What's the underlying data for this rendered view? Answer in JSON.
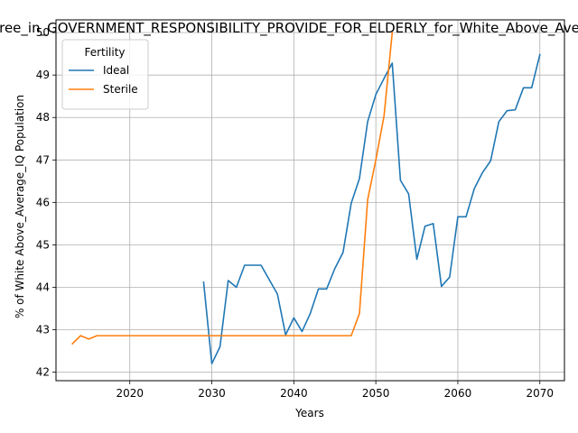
{
  "chart_data": {
    "type": "line",
    "title": "% Agree_in_GOVERNMENT_RESPONSIBILITY_PROVIDE_FOR_ELDERLY_for_White_Above_Average_IQ",
    "xlabel": "Years",
    "ylabel": "% of White Above_Average_IQ Population",
    "xlim": [
      2011,
      2073
    ],
    "ylim": [
      41.8,
      50.3
    ],
    "xticks": [
      2020,
      2030,
      2040,
      2050,
      2060,
      2070
    ],
    "yticks": [
      42,
      43,
      44,
      45,
      46,
      47,
      48,
      49,
      50
    ],
    "grid": true,
    "legend": {
      "title": "Fertility",
      "placement": "top-left"
    },
    "series": [
      {
        "name": "Ideal",
        "color": "#1f77b4",
        "x": [
          2029,
          2030,
          2031,
          2032,
          2033,
          2034,
          2035,
          2036,
          2037,
          2038,
          2039,
          2040,
          2041,
          2042,
          2043,
          2044,
          2045,
          2046,
          2047,
          2048,
          2049,
          2050,
          2051,
          2052,
          2053,
          2054,
          2055,
          2056,
          2057,
          2058,
          2059,
          2060,
          2061,
          2062,
          2063,
          2064,
          2065,
          2066,
          2067,
          2068,
          2069,
          2070
        ],
        "y": [
          44.12,
          42.2,
          42.6,
          44.16,
          44.0,
          44.52,
          44.52,
          44.52,
          44.18,
          43.84,
          42.88,
          43.28,
          42.96,
          43.38,
          43.96,
          43.96,
          44.44,
          44.82,
          45.98,
          46.56,
          47.9,
          48.54,
          48.92,
          49.28,
          46.52,
          46.2,
          44.66,
          45.44,
          45.5,
          44.02,
          44.24,
          45.66,
          45.66,
          46.32,
          46.7,
          46.98,
          47.9,
          48.16,
          48.18,
          48.7,
          48.7,
          49.48
        ]
      },
      {
        "name": "Sterile",
        "color": "#ff7f0e",
        "x": [
          2013,
          2014,
          2015,
          2016,
          2017,
          2018,
          2019,
          2020,
          2021,
          2022,
          2023,
          2024,
          2025,
          2026,
          2027,
          2028,
          2029,
          2030,
          2031,
          2032,
          2033,
          2034,
          2035,
          2036,
          2037,
          2038,
          2039,
          2040,
          2041,
          2042,
          2043,
          2044,
          2045,
          2046,
          2047,
          2048,
          2049,
          2050,
          2051,
          2052
        ],
        "y": [
          42.67,
          42.86,
          42.78,
          42.86,
          42.86,
          42.86,
          42.86,
          42.86,
          42.86,
          42.86,
          42.86,
          42.86,
          42.86,
          42.86,
          42.86,
          42.86,
          42.86,
          42.86,
          42.86,
          42.86,
          42.86,
          42.86,
          42.86,
          42.86,
          42.86,
          42.86,
          42.86,
          42.86,
          42.86,
          42.86,
          42.86,
          42.86,
          42.86,
          42.86,
          42.86,
          43.38,
          46.06,
          47.0,
          48.04,
          50.0
        ]
      }
    ]
  }
}
